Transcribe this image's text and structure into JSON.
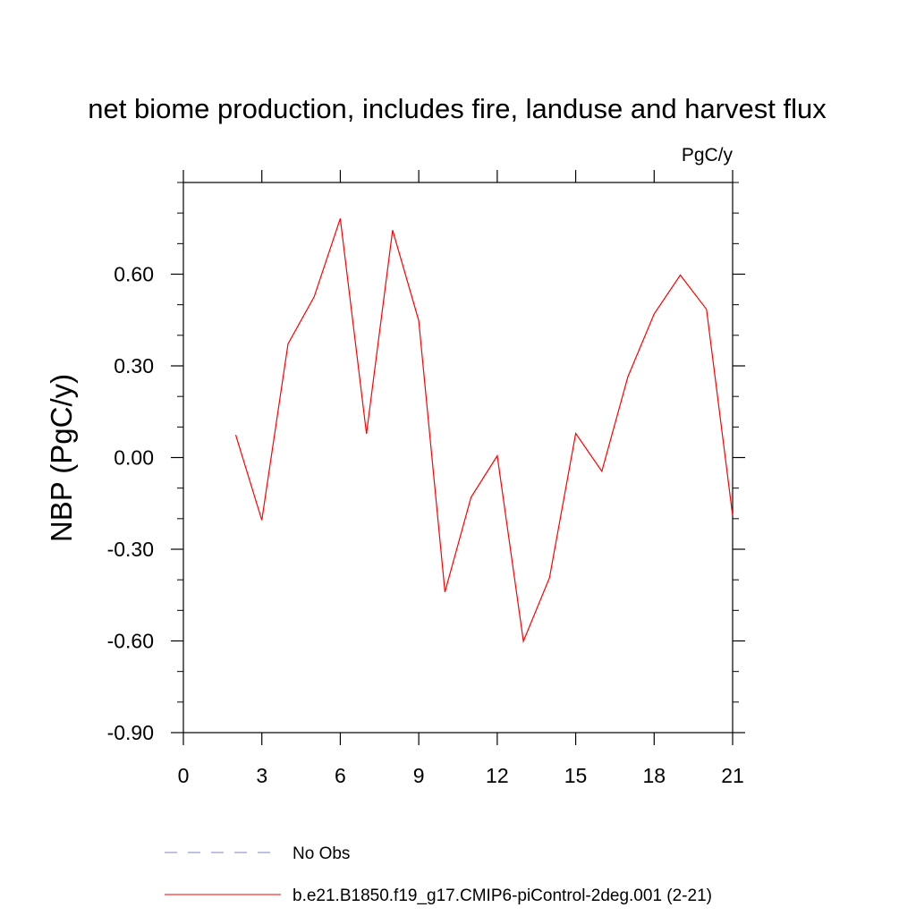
{
  "chart_data": {
    "type": "line",
    "title": "net biome production, includes fire, landuse and harvest flux",
    "units": "PgC/y",
    "xlabel": "",
    "ylabel": "NBP  (PgC/y)",
    "xlim": [
      0,
      21
    ],
    "ylim": [
      -0.9,
      0.9
    ],
    "x_ticks": [
      0,
      3,
      6,
      9,
      12,
      15,
      18,
      21
    ],
    "x_tick_labels": [
      "0",
      "3",
      "6",
      "9",
      "12",
      "15",
      "18",
      "21"
    ],
    "y_ticks": [
      -0.9,
      -0.6,
      -0.3,
      0.0,
      0.3,
      0.6
    ],
    "y_tick_labels": [
      "-0.90",
      "-0.60",
      "-0.30",
      "0.00",
      "0.30",
      "0.60"
    ],
    "x_minor_step": 1,
    "y_minor_step": 0.1,
    "grid": false,
    "legend_position": "bottom",
    "series": [
      {
        "name": "No Obs",
        "style": "dashed",
        "color": "#8080c0",
        "x": [],
        "y": []
      },
      {
        "name": "b.e21.B1850.f19_g17.CMIP6-piControl-2deg.001 (2-21)",
        "style": "solid",
        "color": "#ff0000",
        "x": [
          2,
          3,
          4,
          5,
          6,
          7,
          8,
          9,
          10,
          11,
          12,
          13,
          14,
          15,
          16,
          17,
          18,
          19,
          20,
          21
        ],
        "y": [
          0.074,
          -0.205,
          0.372,
          0.526,
          0.782,
          0.078,
          0.744,
          0.448,
          -0.44,
          -0.13,
          0.006,
          -0.601,
          -0.393,
          0.079,
          -0.045,
          0.265,
          0.47,
          0.597,
          0.485,
          -0.19
        ]
      }
    ]
  }
}
